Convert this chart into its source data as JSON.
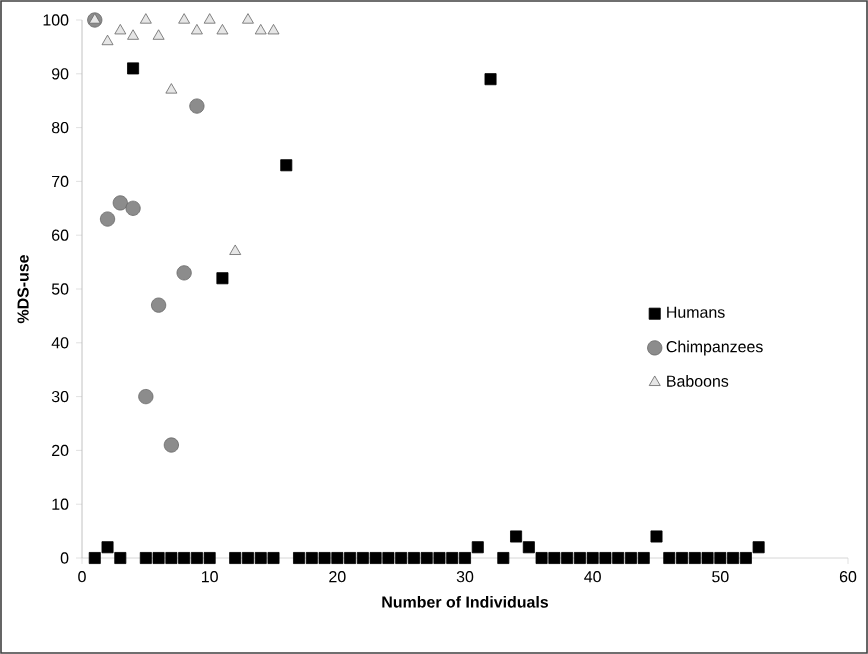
{
  "chart_data": {
    "type": "scatter",
    "xlabel": "Number of Individuals",
    "ylabel": "%DS-use",
    "xlim": [
      0,
      60
    ],
    "xticks": [
      0,
      10,
      20,
      30,
      40,
      50,
      60
    ],
    "ylim": [
      0,
      100
    ],
    "yticks": [
      0,
      10,
      20,
      30,
      40,
      50,
      60,
      70,
      80,
      90,
      100
    ],
    "legend": "right",
    "grid": false,
    "series": [
      {
        "name": "Humans",
        "color": "#000000",
        "marker": "square",
        "x": [
          1,
          2,
          3,
          4,
          5,
          6,
          7,
          8,
          9,
          10,
          11,
          12,
          13,
          14,
          15,
          16,
          17,
          18,
          19,
          20,
          21,
          22,
          23,
          24,
          25,
          26,
          27,
          28,
          29,
          30,
          31,
          32,
          33,
          34,
          35,
          36,
          37,
          38,
          39,
          40,
          41,
          42,
          43,
          44,
          45,
          46,
          47,
          48,
          49,
          50,
          51,
          52,
          53
        ],
        "values": [
          0,
          2,
          0,
          91,
          0,
          0,
          0,
          0,
          0,
          0,
          52,
          0,
          0,
          0,
          0,
          73,
          0,
          0,
          0,
          0,
          0,
          0,
          0,
          0,
          0,
          0,
          0,
          0,
          0,
          0,
          2,
          89,
          0,
          4,
          2,
          0,
          0,
          0,
          0,
          0,
          0,
          0,
          0,
          0,
          4,
          0,
          0,
          0,
          0,
          0,
          0,
          0,
          2
        ]
      },
      {
        "name": "Chimpanzees",
        "color": "#8c8c8c",
        "marker": "circle",
        "x": [
          1,
          2,
          3,
          4,
          5,
          6,
          7,
          8,
          9
        ],
        "values": [
          100,
          63,
          66,
          65,
          30,
          47,
          21,
          53,
          84
        ]
      },
      {
        "name": "Baboons",
        "color": "#e6e6e6",
        "marker": "triangle",
        "x": [
          1,
          2,
          3,
          4,
          5,
          6,
          7,
          8,
          9,
          10,
          11,
          12,
          13,
          14,
          15
        ],
        "values": [
          100,
          96,
          98,
          97,
          100,
          97,
          87,
          100,
          98,
          100,
          98,
          57,
          100,
          98,
          98
        ]
      }
    ]
  }
}
